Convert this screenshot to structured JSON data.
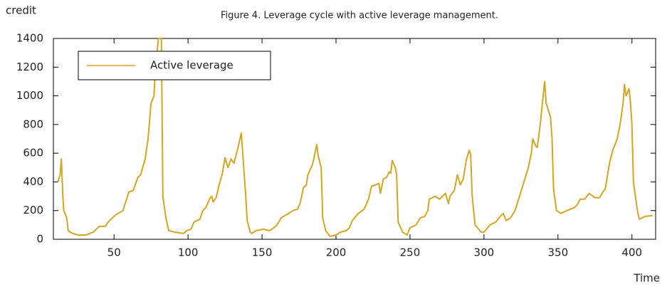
{
  "chart_data": {
    "type": "line",
    "title": "Figure 4. Leverage cycle with active leverage management.",
    "y_label": "credit",
    "x_label": "Time",
    "xlim": [
      9,
      416
    ],
    "xticks": [
      50,
      100,
      150,
      200,
      250,
      300,
      350,
      400
    ],
    "ylim": [
      0,
      1400
    ],
    "yticks": [
      0,
      200,
      400,
      600,
      800,
      1000,
      1200,
      1400
    ],
    "legend": "top-left",
    "series": [
      {
        "name": "Active leverage",
        "color": "#d9a520",
        "x": [
          12,
          13.5,
          14.4,
          15.4,
          16,
          18,
          19,
          22,
          26,
          31,
          36,
          40,
          44,
          46,
          51,
          56,
          60,
          63,
          66,
          68,
          71,
          73,
          75,
          77,
          78,
          80,
          82,
          83,
          85,
          87,
          91,
          97,
          99,
          102,
          104,
          108,
          110,
          112,
          115,
          116,
          117,
          119,
          121,
          123,
          125,
          127,
          129,
          131,
          132,
          134,
          136,
          138,
          139,
          140,
          142,
          143,
          146,
          151,
          155,
          158,
          160,
          163,
          168,
          171,
          174,
          176,
          178,
          180,
          181,
          184,
          185,
          187,
          188,
          190,
          191,
          193,
          196,
          200,
          203,
          207,
          209,
          211,
          215,
          219,
          222,
          224,
          227,
          229,
          230,
          232,
          234,
          236,
          237,
          238,
          240,
          241,
          242,
          245,
          248,
          250,
          254,
          257,
          260,
          262,
          263,
          267,
          270,
          274,
          276,
          277,
          280,
          282,
          284,
          286,
          288,
          290,
          291,
          292,
          294,
          298,
          300,
          304,
          308,
          311,
          313,
          315,
          318,
          321,
          324,
          327,
          330,
          332,
          333,
          335,
          336,
          338,
          340,
          341,
          342,
          345,
          346,
          347,
          349,
          352,
          356,
          361,
          363,
          365,
          368,
          371,
          375,
          378,
          381,
          382,
          384,
          385,
          387,
          390,
          392,
          394,
          395,
          396,
          398,
          399,
          400,
          401,
          403,
          404,
          405,
          407,
          409,
          414
        ],
        "values": [
          400,
          450,
          560,
          300,
          200,
          150,
          60,
          40,
          30,
          30,
          50,
          90,
          90,
          120,
          170,
          200,
          330,
          340,
          430,
          450,
          560,
          700,
          950,
          1000,
          1200,
          1400,
          1400,
          300,
          150,
          60,
          50,
          40,
          60,
          70,
          120,
          140,
          200,
          220,
          290,
          300,
          260,
          290,
          380,
          450,
          570,
          500,
          560,
          530,
          570,
          650,
          740,
          450,
          300,
          130,
          50,
          40,
          60,
          70,
          60,
          80,
          100,
          150,
          180,
          200,
          210,
          260,
          360,
          380,
          450,
          520,
          560,
          660,
          580,
          500,
          150,
          60,
          20,
          30,
          50,
          60,
          80,
          130,
          180,
          210,
          280,
          370,
          380,
          390,
          320,
          420,
          430,
          470,
          460,
          550,
          500,
          450,
          120,
          50,
          30,
          80,
          100,
          150,
          160,
          200,
          280,
          300,
          280,
          320,
          250,
          300,
          340,
          450,
          380,
          420,
          550,
          620,
          590,
          300,
          100,
          50,
          50,
          100,
          120,
          160,
          180,
          130,
          150,
          200,
          300,
          400,
          500,
          600,
          700,
          650,
          640,
          800,
          1000,
          1100,
          950,
          850,
          700,
          350,
          200,
          180,
          200,
          220,
          240,
          280,
          280,
          320,
          290,
          290,
          340,
          350,
          480,
          540,
          620,
          700,
          800,
          950,
          1080,
          1000,
          1050,
          950,
          800,
          400,
          250,
          180,
          140,
          150,
          160,
          165
        ]
      }
    ]
  }
}
